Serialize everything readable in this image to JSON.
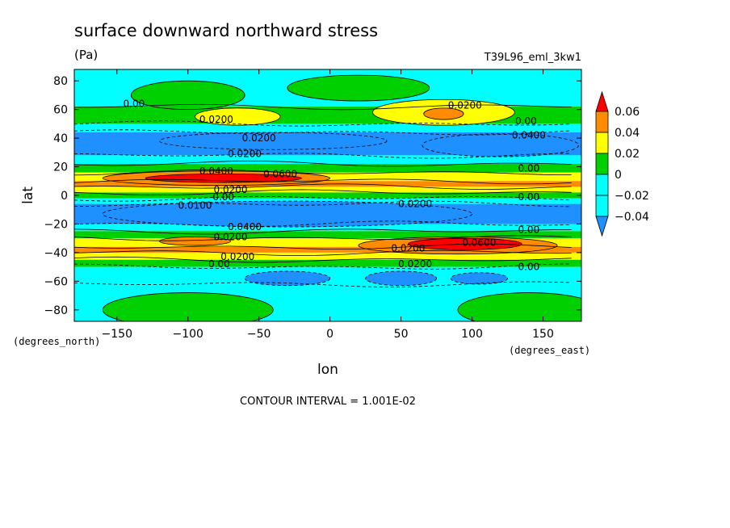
{
  "chart_data": {
    "type": "heatmap",
    "title": "surface downward northward stress",
    "units": "(Pa)",
    "run_name": "T39L96_eml_3kw1",
    "xlabel": "lon",
    "ylabel": "lat",
    "x_unit_label": "(degrees_east)",
    "y_unit_label": "(degrees_north)",
    "xlim": [
      -180,
      177
    ],
    "ylim": [
      -88,
      88
    ],
    "x_ticks": [
      {
        "value": -150,
        "label": "−150"
      },
      {
        "value": -100,
        "label": "−100"
      },
      {
        "value": -50,
        "label": "−50"
      },
      {
        "value": 0,
        "label": "0"
      },
      {
        "value": 50,
        "label": "50"
      },
      {
        "value": 100,
        "label": "100"
      },
      {
        "value": 150,
        "label": "150"
      }
    ],
    "y_ticks": [
      {
        "value": 80,
        "label": "80"
      },
      {
        "value": 60,
        "label": "60"
      },
      {
        "value": 40,
        "label": "40"
      },
      {
        "value": 20,
        "label": "20"
      },
      {
        "value": 0,
        "label": "0"
      },
      {
        "value": -20,
        "label": "−20"
      },
      {
        "value": -40,
        "label": "−40"
      },
      {
        "value": -60,
        "label": "−60"
      },
      {
        "value": -80,
        "label": "−80"
      }
    ],
    "colorbar": {
      "levels": [
        "0.06",
        "0.04",
        "0.02",
        "0",
        "−0.02",
        "−0.04"
      ],
      "colors": [
        "#ff0000",
        "#ff8c00",
        "#ffff00",
        "#00d000",
        "#00ffff",
        "#1e90ff"
      ],
      "extend": "both",
      "top_color": "#ff0000",
      "bottom_color": "#1e90ff"
    },
    "contour_interval": "CONTOUR INTERVAL = 1.001E-02",
    "color_classes": [
      {
        "name": "lt_m004",
        "min": -1,
        "max": -0.04,
        "color": "#1e90ff"
      },
      {
        "name": "m004_m002",
        "min": -0.04,
        "max": -0.02,
        "color": "#00ffff"
      },
      {
        "name": "m002_0",
        "min": -0.02,
        "max": 0,
        "color": "#00ffff"
      },
      {
        "name": "0_002",
        "min": 0,
        "max": 0.02,
        "color": "#00d000"
      },
      {
        "name": "002_004",
        "min": 0.02,
        "max": 0.04,
        "color": "#ffff00"
      },
      {
        "name": "004_006",
        "min": 0.04,
        "max": 0.06,
        "color": "#ff8c00"
      },
      {
        "name": "gt_006",
        "min": 0.06,
        "max": 1,
        "color": "#ff0000"
      }
    ],
    "zonal_bands": [
      {
        "lat_top": 88,
        "lat_bottom": 62,
        "color": "#00ffff"
      },
      {
        "lat_top": 62,
        "lat_bottom": 50,
        "color": "#00d000"
      },
      {
        "lat_top": 50,
        "lat_bottom": 44,
        "color": "#00ffff"
      },
      {
        "lat_top": 44,
        "lat_bottom": 28,
        "color": "#1e90ff"
      },
      {
        "lat_top": 28,
        "lat_bottom": 22,
        "color": "#00ffff"
      },
      {
        "lat_top": 22,
        "lat_bottom": 16,
        "color": "#00d000"
      },
      {
        "lat_top": 16,
        "lat_bottom": 10,
        "color": "#ffff00"
      },
      {
        "lat_top": 10,
        "lat_bottom": 6,
        "color": "#ff8c00"
      },
      {
        "lat_top": 6,
        "lat_bottom": 2,
        "color": "#ffff00"
      },
      {
        "lat_top": 2,
        "lat_bottom": -2,
        "color": "#00d000"
      },
      {
        "lat_top": -2,
        "lat_bottom": -6,
        "color": "#00ffff"
      },
      {
        "lat_top": -6,
        "lat_bottom": -20,
        "color": "#1e90ff"
      },
      {
        "lat_top": -20,
        "lat_bottom": -25,
        "color": "#00ffff"
      },
      {
        "lat_top": -25,
        "lat_bottom": -30,
        "color": "#00d000"
      },
      {
        "lat_top": -30,
        "lat_bottom": -36,
        "color": "#ffff00"
      },
      {
        "lat_top": -36,
        "lat_bottom": -40,
        "color": "#ff8c00"
      },
      {
        "lat_top": -40,
        "lat_bottom": -45,
        "color": "#ffff00"
      },
      {
        "lat_top": -45,
        "lat_bottom": -50,
        "color": "#00d000"
      },
      {
        "lat_top": -50,
        "lat_bottom": -62,
        "color": "#00ffff"
      },
      {
        "lat_top": -62,
        "lat_bottom": -88,
        "color": "#00ffff"
      }
    ],
    "features": [
      {
        "shape": "ellipse",
        "lon": -100,
        "lat": 70,
        "rlon": 40,
        "rlat": 10,
        "color": "#00d000"
      },
      {
        "shape": "ellipse",
        "lon": 20,
        "lat": 75,
        "rlon": 50,
        "rlat": 9,
        "color": "#00d000"
      },
      {
        "shape": "ellipse",
        "lon": -65,
        "lat": 55,
        "rlon": 30,
        "rlat": 6,
        "color": "#ffff00"
      },
      {
        "shape": "ellipse",
        "lon": 80,
        "lat": 58,
        "rlon": 50,
        "rlat": 9,
        "color": "#ffff00"
      },
      {
        "shape": "ellipse",
        "lon": 80,
        "lat": 57,
        "rlon": 14,
        "rlat": 4,
        "color": "#ff8c00"
      },
      {
        "shape": "ellipse",
        "lon": -40,
        "lat": 38,
        "rlon": 80,
        "rlat": 6,
        "color": "#1e90ff"
      },
      {
        "shape": "ellipse",
        "lon": 120,
        "lat": 35,
        "rlon": 55,
        "rlat": 8,
        "color": "#1e90ff"
      },
      {
        "shape": "ellipse",
        "lon": -80,
        "lat": 12,
        "rlon": 80,
        "rlat": 5,
        "color": "#ff8c00"
      },
      {
        "shape": "ellipse",
        "lon": -75,
        "lat": 12,
        "rlon": 55,
        "rlat": 3,
        "color": "#ff0000"
      },
      {
        "shape": "ellipse",
        "lon": -30,
        "lat": -13,
        "rlon": 130,
        "rlat": 9,
        "color": "#1e90ff"
      },
      {
        "shape": "ellipse",
        "lon": 90,
        "lat": -35,
        "rlon": 70,
        "rlat": 6,
        "color": "#ff8c00"
      },
      {
        "shape": "ellipse",
        "lon": 95,
        "lat": -34,
        "rlon": 40,
        "rlat": 4,
        "color": "#ff0000"
      },
      {
        "shape": "ellipse",
        "lon": -95,
        "lat": -32,
        "rlon": 25,
        "rlat": 3,
        "color": "#ff8c00"
      },
      {
        "shape": "ellipse",
        "lon": -30,
        "lat": -58,
        "rlon": 30,
        "rlat": 5,
        "color": "#1e90ff"
      },
      {
        "shape": "ellipse",
        "lon": 50,
        "lat": -58,
        "rlon": 25,
        "rlat": 5,
        "color": "#1e90ff"
      },
      {
        "shape": "ellipse",
        "lon": 105,
        "lat": -58,
        "rlon": 20,
        "rlat": 4,
        "color": "#1e90ff"
      },
      {
        "shape": "ellipse",
        "lon": -100,
        "lat": -80,
        "rlon": 60,
        "rlat": 12,
        "color": "#00d000"
      },
      {
        "shape": "ellipse",
        "lon": 140,
        "lat": -80,
        "rlon": 50,
        "rlat": 12,
        "color": "#00d000"
      }
    ],
    "contour_labels": [
      {
        "text": "0.00",
        "lon": -138,
        "lat": 64
      },
      {
        "text": "0.0200",
        "lon": 95,
        "lat": 63
      },
      {
        "text": "0.0200",
        "lon": -80,
        "lat": 53
      },
      {
        "text": "0.00",
        "lon": 138,
        "lat": 52
      },
      {
        "text": "0.0400",
        "lon": 140,
        "lat": 42
      },
      {
        "text": "0.0200",
        "lon": -50,
        "lat": 40
      },
      {
        "text": "0.0200",
        "lon": -60,
        "lat": 29
      },
      {
        "text": "0.00",
        "lon": 140,
        "lat": 19
      },
      {
        "text": "0.0600",
        "lon": -35,
        "lat": 15
      },
      {
        "text": "0.0400",
        "lon": -80,
        "lat": 17
      },
      {
        "text": "0.0200",
        "lon": -70,
        "lat": 4
      },
      {
        "text": "0.00",
        "lon": -75,
        "lat": -1
      },
      {
        "text": "0.00",
        "lon": 140,
        "lat": -1
      },
      {
        "text": "0.0100",
        "lon": -95,
        "lat": -7
      },
      {
        "text": "0.0200",
        "lon": 60,
        "lat": -6
      },
      {
        "text": "0.0400",
        "lon": -60,
        "lat": -22
      },
      {
        "text": "0.0200",
        "lon": -70,
        "lat": -29
      },
      {
        "text": "0.00",
        "lon": 140,
        "lat": -24
      },
      {
        "text": "0.0600",
        "lon": 105,
        "lat": -33
      },
      {
        "text": "0.0200",
        "lon": 55,
        "lat": -37
      },
      {
        "text": "0.0200",
        "lon": -65,
        "lat": -43
      },
      {
        "text": "0.00",
        "lon": -78,
        "lat": -48
      },
      {
        "text": "0.0200",
        "lon": 60,
        "lat": -48
      },
      {
        "text": "0.00",
        "lon": 140,
        "lat": -50
      }
    ]
  }
}
